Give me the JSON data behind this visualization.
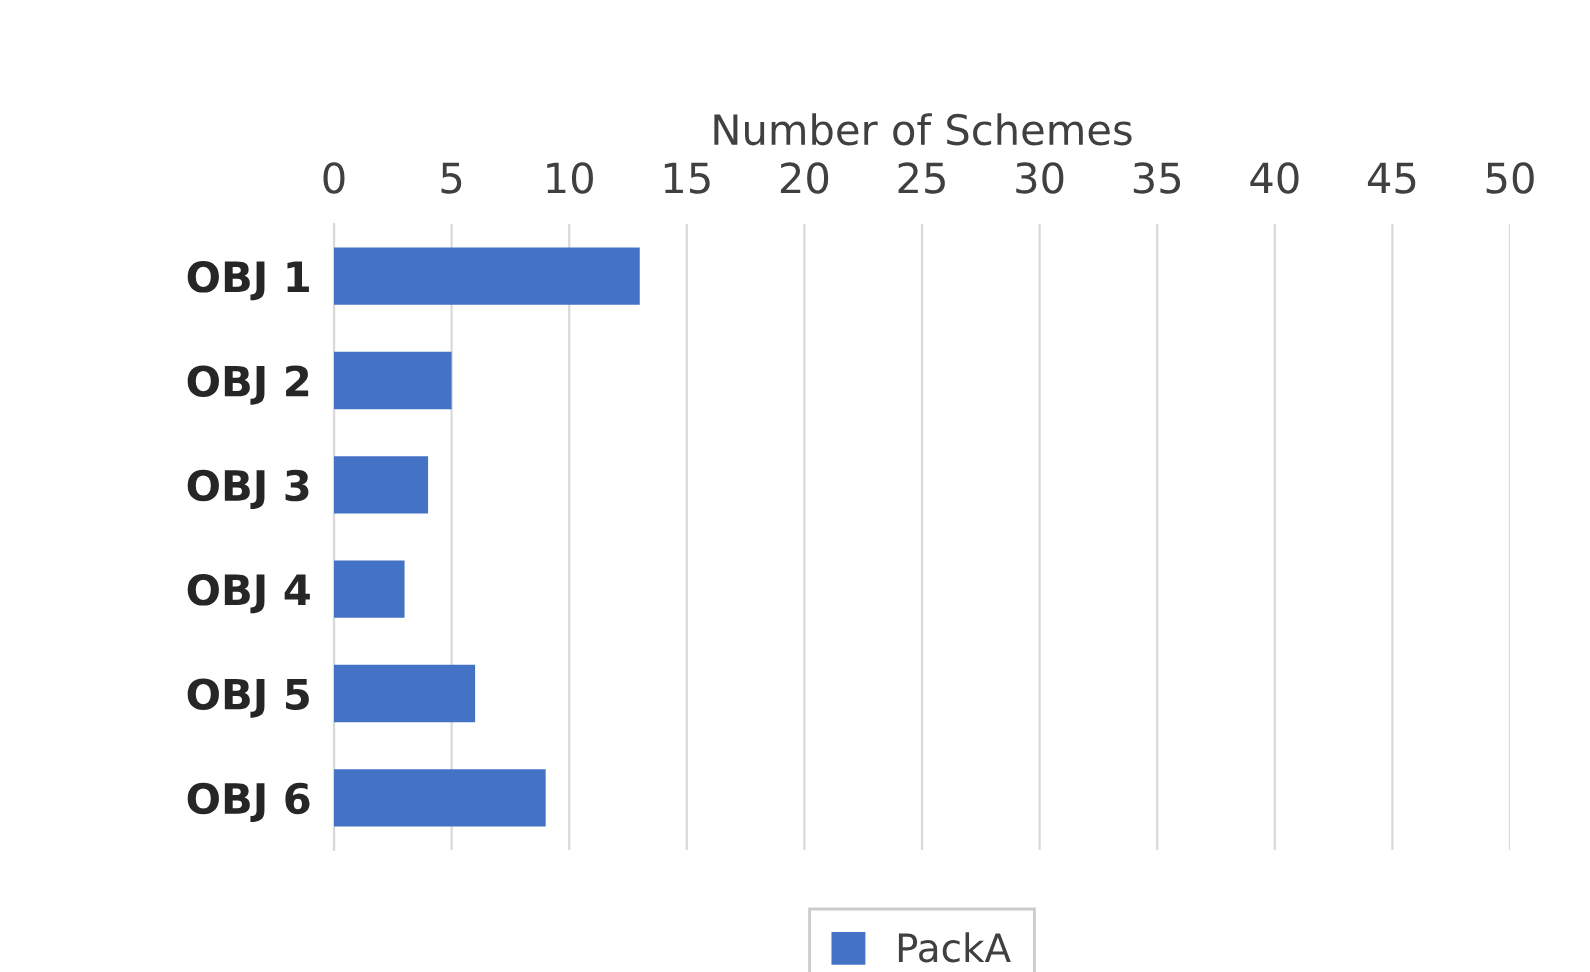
{
  "chart_data": {
    "type": "bar",
    "orientation": "horizontal",
    "xlabel": "Number of Schemes",
    "categories": [
      "OBJ 1",
      "OBJ 2",
      "OBJ 3",
      "OBJ 4",
      "OBJ 5",
      "OBJ 6"
    ],
    "series": [
      {
        "name": "PackA",
        "color": "#4472c4",
        "values": [
          13,
          5,
          4,
          3,
          6,
          9
        ]
      }
    ],
    "xlim": [
      0,
      50
    ],
    "xticks": [
      0,
      5,
      10,
      15,
      20,
      25,
      30,
      35,
      40,
      45,
      50
    ],
    "grid": "x",
    "legend": "bottom"
  }
}
